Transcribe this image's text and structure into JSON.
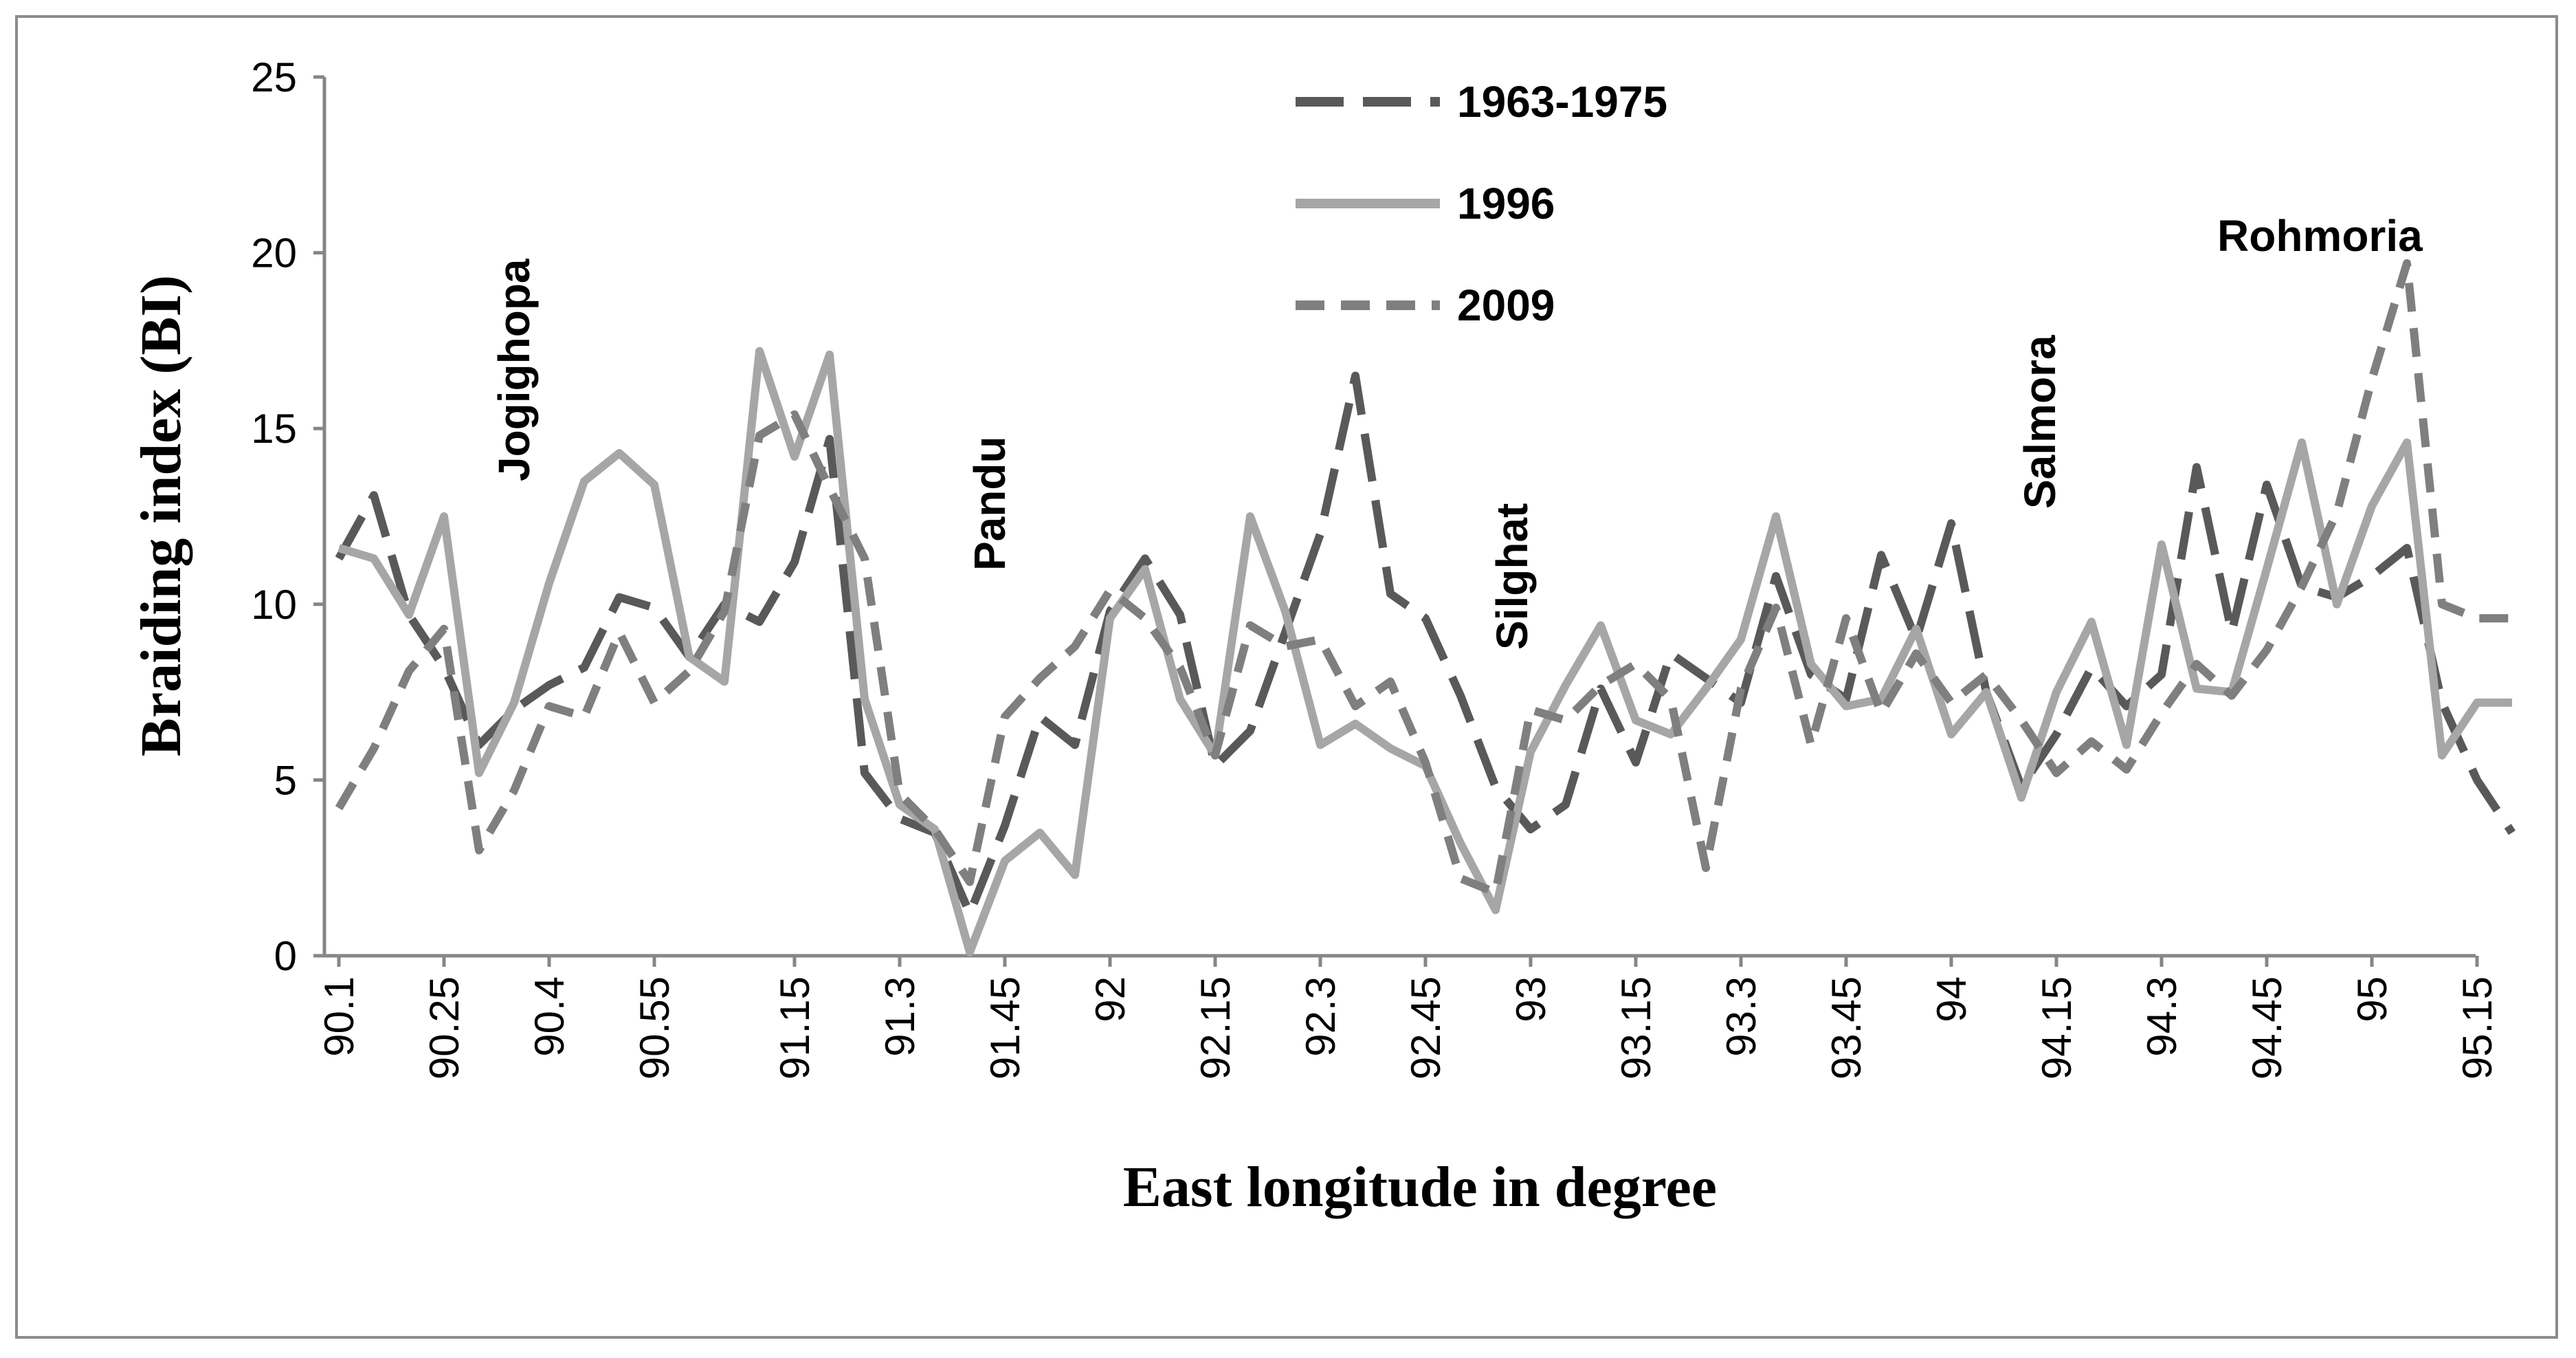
{
  "chart_data": {
    "type": "line",
    "title": "",
    "xlabel": "East longitude in degree",
    "ylabel": "Braiding index (BI)",
    "ylim": [
      0,
      25
    ],
    "yticks": [
      "0",
      "5",
      "10",
      "15",
      "20",
      "25"
    ],
    "categories": [
      "90.1",
      "90.15",
      "90.2",
      "90.25",
      "90.3",
      "90.35",
      "90.4",
      "90.45",
      "90.5",
      "90.55",
      "91",
      "91.05",
      "91.1",
      "91.15",
      "91.2",
      "91.25",
      "91.3",
      "91.35",
      "91.4",
      "91.45",
      "91.5",
      "91.55",
      "92",
      "92.05",
      "92.1",
      "92.15",
      "92.2",
      "92.25",
      "92.3",
      "92.35",
      "92.4",
      "92.45",
      "92.5",
      "92.55",
      "93",
      "93.05",
      "93.1",
      "93.15",
      "93.2",
      "93.25",
      "93.3",
      "93.35",
      "93.4",
      "93.45",
      "93.5",
      "93.55",
      "94",
      "94.05",
      "94.1",
      "94.15",
      "94.2",
      "94.25",
      "94.3",
      "94.35",
      "94.4",
      "94.45",
      "94.5",
      "94.55",
      "95",
      "95.05",
      "95.1",
      "95.15",
      "95.2"
    ],
    "tick_labels": [
      "90.1",
      "90.25",
      "90.4",
      "90.55",
      "91.15",
      "91.3",
      "91.45",
      "92",
      "92.15",
      "92.3",
      "92.45",
      "93",
      "93.15",
      "93.3",
      "93.45",
      "94",
      "94.15",
      "94.3",
      "94.45",
      "95",
      "95.15"
    ],
    "tick_label_indices": [
      0,
      3,
      6,
      9,
      13,
      16,
      19,
      22,
      25,
      28,
      31,
      34,
      37,
      40,
      43,
      46,
      49,
      52,
      55,
      58,
      61
    ],
    "series": [
      {
        "name": "1963-1975",
        "color": "#595959",
        "dash": "long-dash",
        "values": [
          11.3,
          13.1,
          9.7,
          8.2,
          6.0,
          7.0,
          7.7,
          8.2,
          10.2,
          9.9,
          8.5,
          10.0,
          9.5,
          11.2,
          14.7,
          5.2,
          3.9,
          3.5,
          1.2,
          3.7,
          6.8,
          6.0,
          9.8,
          11.3,
          9.7,
          5.4,
          6.4,
          9.2,
          12.0,
          16.5,
          10.3,
          9.6,
          7.4,
          4.8,
          3.6,
          4.3,
          7.6,
          5.5,
          8.6,
          7.9,
          7.2,
          10.8,
          8.0,
          7.3,
          11.4,
          9.0,
          12.3,
          7.5,
          4.8,
          6.3,
          8.2,
          7.1,
          8.0,
          13.9,
          9.2,
          13.4,
          10.5,
          10.2,
          10.8,
          11.6,
          7.2,
          5.0,
          3.5
        ]
      },
      {
        "name": "1996",
        "color": "#a6a6a6",
        "dash": "solid",
        "values": [
          11.6,
          11.3,
          9.7,
          12.5,
          5.2,
          7.2,
          10.6,
          13.5,
          14.3,
          13.4,
          8.5,
          7.8,
          17.2,
          14.2,
          17.1,
          7.3,
          4.3,
          3.6,
          0.1,
          2.7,
          3.5,
          2.3,
          9.6,
          11.0,
          7.3,
          5.7,
          12.5,
          9.8,
          6.0,
          6.6,
          5.9,
          5.4,
          3.2,
          1.3,
          5.8,
          7.7,
          9.4,
          6.7,
          6.3,
          7.6,
          9.0,
          12.5,
          8.3,
          7.1,
          7.3,
          9.3,
          6.3,
          7.5,
          4.5,
          7.5,
          9.5,
          6.0,
          11.7,
          7.6,
          7.5,
          11.0,
          14.6,
          10.0,
          12.8,
          14.6,
          5.7,
          7.2,
          7.2
        ]
      },
      {
        "name": "2009",
        "color": "#7f7f7f",
        "dash": "short-dash",
        "values": [
          4.2,
          5.9,
          8.1,
          9.3,
          3.0,
          4.7,
          7.1,
          6.8,
          9.2,
          7.2,
          8.1,
          9.8,
          14.8,
          15.4,
          13.3,
          11.3,
          4.6,
          3.6,
          2.1,
          6.8,
          7.9,
          8.8,
          10.4,
          9.6,
          8.2,
          5.7,
          9.4,
          8.8,
          9.0,
          7.1,
          7.8,
          5.5,
          2.2,
          1.8,
          7.0,
          6.7,
          7.7,
          8.3,
          7.3,
          2.5,
          7.6,
          9.9,
          6.0,
          9.6,
          6.9,
          8.6,
          7.2,
          8.0,
          6.7,
          5.2,
          6.1,
          5.3,
          6.9,
          8.3,
          7.4,
          8.7,
          10.5,
          12.6,
          16.4,
          19.7,
          10.0,
          9.6,
          9.6
        ]
      }
    ],
    "annotations": [
      "Jogighopa",
      "Pandu",
      "Silghat",
      "Salmora",
      "Rohmoria"
    ],
    "legend_position": "top-center",
    "grid": false
  }
}
